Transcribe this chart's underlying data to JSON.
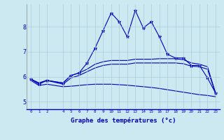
{
  "xlabel": "Graphe des températures (°c)",
  "background_color": "#cce8f0",
  "grid_color": "#aaccdd",
  "line_color": "#0000bb",
  "xlim": [
    -0.5,
    23.5
  ],
  "ylim": [
    4.7,
    8.9
  ],
  "yticks": [
    5,
    6,
    7,
    8
  ],
  "xticks": [
    0,
    1,
    2,
    4,
    5,
    6,
    7,
    8,
    9,
    10,
    11,
    12,
    13,
    14,
    15,
    16,
    17,
    18,
    19,
    20,
    21,
    22,
    23
  ],
  "series": [
    {
      "x": [
        0,
        1,
        2,
        4,
        5,
        6,
        7,
        8,
        9,
        10,
        11,
        12,
        13,
        14,
        15,
        16,
        17,
        18,
        19,
        20,
        21,
        22,
        23
      ],
      "y": [
        5.9,
        5.7,
        5.85,
        5.75,
        6.05,
        6.15,
        6.55,
        7.15,
        7.85,
        8.55,
        8.2,
        7.6,
        8.65,
        7.95,
        8.2,
        7.6,
        6.9,
        6.75,
        6.75,
        6.45,
        6.45,
        5.95,
        5.35
      ],
      "has_markers": true
    },
    {
      "x": [
        0,
        1,
        2,
        4,
        5,
        6,
        7,
        8,
        9,
        10,
        11,
        12,
        13,
        14,
        15,
        16,
        17,
        18,
        19,
        20,
        21,
        22,
        23
      ],
      "y": [
        5.9,
        5.75,
        5.85,
        5.75,
        6.05,
        6.15,
        6.3,
        6.5,
        6.6,
        6.65,
        6.65,
        6.65,
        6.7,
        6.7,
        6.7,
        6.72,
        6.72,
        6.72,
        6.68,
        6.55,
        6.5,
        6.4,
        5.35
      ],
      "has_markers": false
    },
    {
      "x": [
        0,
        1,
        2,
        4,
        5,
        6,
        7,
        8,
        9,
        10,
        11,
        12,
        13,
        14,
        15,
        16,
        17,
        18,
        19,
        20,
        21,
        22,
        23
      ],
      "y": [
        5.9,
        5.75,
        5.85,
        5.7,
        5.95,
        6.05,
        6.2,
        6.35,
        6.45,
        6.5,
        6.5,
        6.5,
        6.55,
        6.55,
        6.55,
        6.55,
        6.55,
        6.55,
        6.52,
        6.42,
        6.4,
        6.3,
        5.35
      ],
      "has_markers": false
    },
    {
      "x": [
        0,
        1,
        2,
        4,
        5,
        6,
        7,
        8,
        9,
        10,
        11,
        12,
        13,
        14,
        15,
        16,
        17,
        18,
        19,
        20,
        21,
        22,
        23
      ],
      "y": [
        5.85,
        5.65,
        5.7,
        5.6,
        5.62,
        5.65,
        5.68,
        5.7,
        5.7,
        5.7,
        5.68,
        5.66,
        5.63,
        5.6,
        5.57,
        5.53,
        5.48,
        5.43,
        5.38,
        5.33,
        5.28,
        5.25,
        5.2
      ],
      "has_markers": false
    }
  ]
}
